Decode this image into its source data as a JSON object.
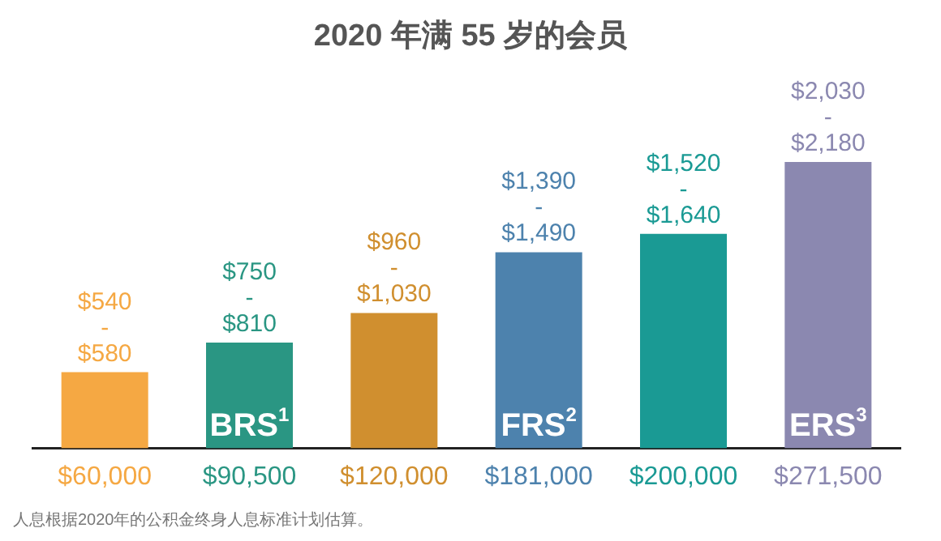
{
  "chart_data": {
    "type": "bar",
    "title": "2020 年满 55 岁的会员",
    "categories": [
      "$60,000",
      "$90,500",
      "$120,000",
      "$181,000",
      "$200,000",
      "$271,500"
    ],
    "values": [
      540,
      750,
      960,
      1390,
      1520,
      2030
    ],
    "colors": [
      "#f5a843",
      "#2a9683",
      "#d08f2f",
      "#4d82ad",
      "#1a9a94",
      "#8b88b0"
    ],
    "value_labels": [
      "$540 - $580",
      "$750 - $810",
      "$960 - $1,030",
      "$1,390 - $1,490",
      "$1,520 - $1,640",
      "$2,030 - $2,180"
    ],
    "tick_labels": "x",
    "grid": false,
    "legend": false,
    "annotations": [
      "BRS$^{1}$",
      "FRS$^{2}$",
      "ERS$^{3}$",
      "人息根据2020年的公积金终身人息标准计划估算。"
    ]
  }
}
